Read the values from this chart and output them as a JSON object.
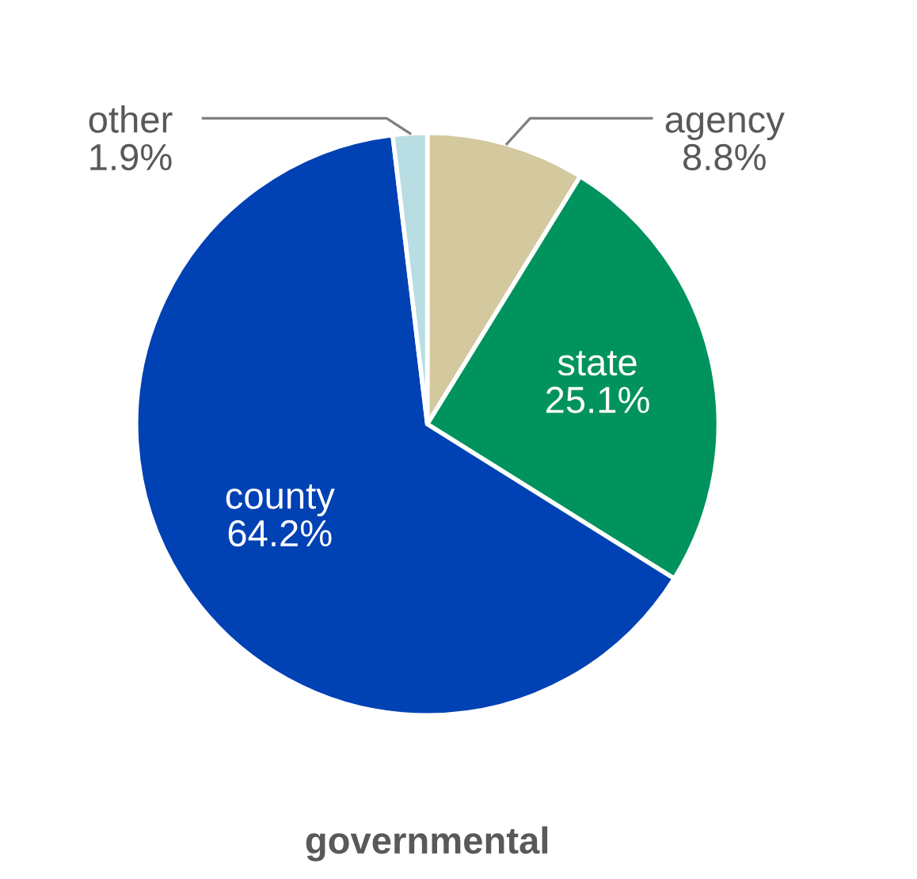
{
  "chart_data": {
    "type": "pie",
    "title": "governmental",
    "categories": [
      "agency",
      "state",
      "county",
      "other"
    ],
    "values": [
      8.8,
      25.1,
      64.2,
      1.9
    ],
    "colors": [
      "#d3c89e",
      "#00935e",
      "#0041b4",
      "#b8dde3"
    ],
    "value_labels": [
      "8.8%",
      "25.1%",
      "64.2%",
      "1.9%"
    ],
    "legend": false
  }
}
